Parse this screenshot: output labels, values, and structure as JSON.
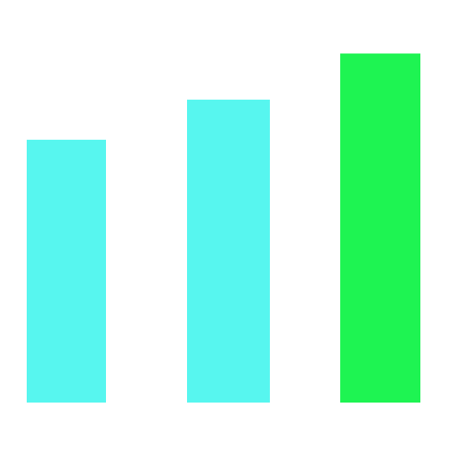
{
  "chart_data": {
    "type": "bar",
    "categories": [
      "",
      "",
      ""
    ],
    "values": [
      308,
      355,
      409
    ],
    "colors": [
      "#57f6ef",
      "#57f6ef",
      "#1ef452"
    ],
    "title": "",
    "xlabel": "",
    "ylabel": "",
    "ylim": [
      0,
      430
    ],
    "grid": false,
    "axes_visible": false,
    "legend": "none"
  }
}
